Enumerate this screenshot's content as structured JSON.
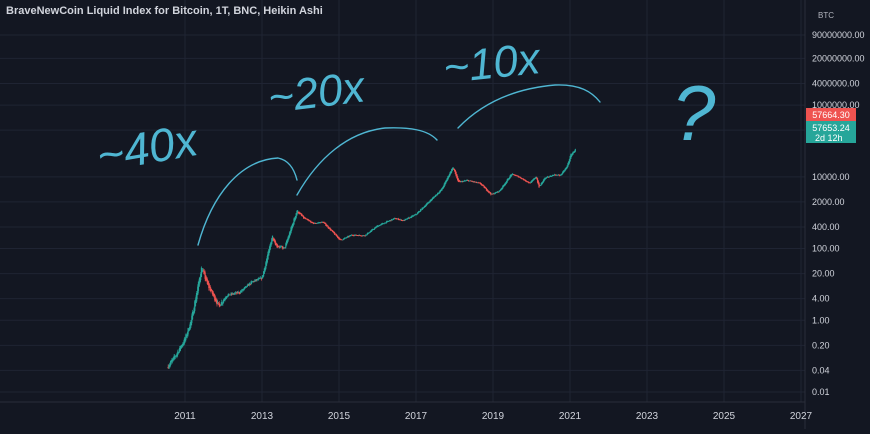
{
  "header": {
    "title": "BraveNewCoin Liquid Index for Bitcoin, 1T, BNC, Heikin Ashi",
    "currency": "BTC"
  },
  "colors": {
    "background": "#131722",
    "grid": "#1f2433",
    "axis_text": "#d1d4dc",
    "candle_up": "#26a69a",
    "candle_down": "#ef5350",
    "annotation_ink": "#4fb6d2",
    "ask_label": "#ef5350",
    "bid_label": "#26a69a"
  },
  "annotations": [
    "~40x",
    "~20x",
    "~10x",
    "?"
  ],
  "price_labels": {
    "ask": "57664.30",
    "bid": "57653.24",
    "countdown": "2d 12h"
  },
  "chart_data": {
    "type": "candlestick",
    "title": "BraveNewCoin Liquid Index for Bitcoin, 1T, BNC, Heikin Ashi",
    "y_scale": "log",
    "ylim": [
      0.01,
      90000000
    ],
    "xlim": [
      "2010-07-01",
      "2027-06-01"
    ],
    "y_ticks": [
      "0.01",
      "0.04",
      "0.20",
      "1.00",
      "4.00",
      "20.00",
      "100.00",
      "400.00",
      "2000.00",
      "10000.00",
      "200000.00",
      "1000000.00",
      "4000000.00",
      "20000000.00",
      "90000000.00"
    ],
    "x_ticks": [
      "2011",
      "2013",
      "2015",
      "2017",
      "2019",
      "2021",
      "2023",
      "2025",
      "2027"
    ],
    "grid": true,
    "legend": "none",
    "series": [
      {
        "x": [
          "2010-07-18",
          "2010-10-01",
          "2011-01-01",
          "2011-03-01",
          "2011-06-08",
          "2011-08-01",
          "2011-11-18",
          "2012-02-01",
          "2012-06-01",
          "2012-10-01",
          "2013-01-01",
          "2013-04-09",
          "2013-05-15",
          "2013-08-01",
          "2013-11-29",
          "2014-02-01",
          "2014-05-01",
          "2014-08-01",
          "2015-01-14",
          "2015-05-01",
          "2015-09-01",
          "2016-01-01",
          "2016-06-15",
          "2016-09-01",
          "2017-01-01",
          "2017-05-01",
          "2017-09-01",
          "2017-12-17",
          "2018-02-06",
          "2018-05-01",
          "2018-09-01",
          "2018-12-15",
          "2019-03-01",
          "2019-06-26",
          "2019-09-01",
          "2019-12-17",
          "2020-02-13",
          "2020-03-12",
          "2020-05-01",
          "2020-08-01",
          "2020-10-01",
          "2020-12-01",
          "2021-01-08",
          "2021-02-21"
        ],
        "values": [
          0.05,
          0.1,
          0.3,
          1,
          30,
          10,
          2.5,
          5,
          6,
          12,
          15,
          230,
          120,
          100,
          1150,
          700,
          500,
          550,
          170,
          240,
          230,
          430,
          700,
          600,
          900,
          2000,
          4500,
          19000,
          7000,
          8000,
          6500,
          3200,
          4000,
          12000,
          10000,
          6600,
          10300,
          5000,
          9000,
          11500,
          11000,
          19000,
          41000,
          57653.24
        ]
      }
    ]
  }
}
